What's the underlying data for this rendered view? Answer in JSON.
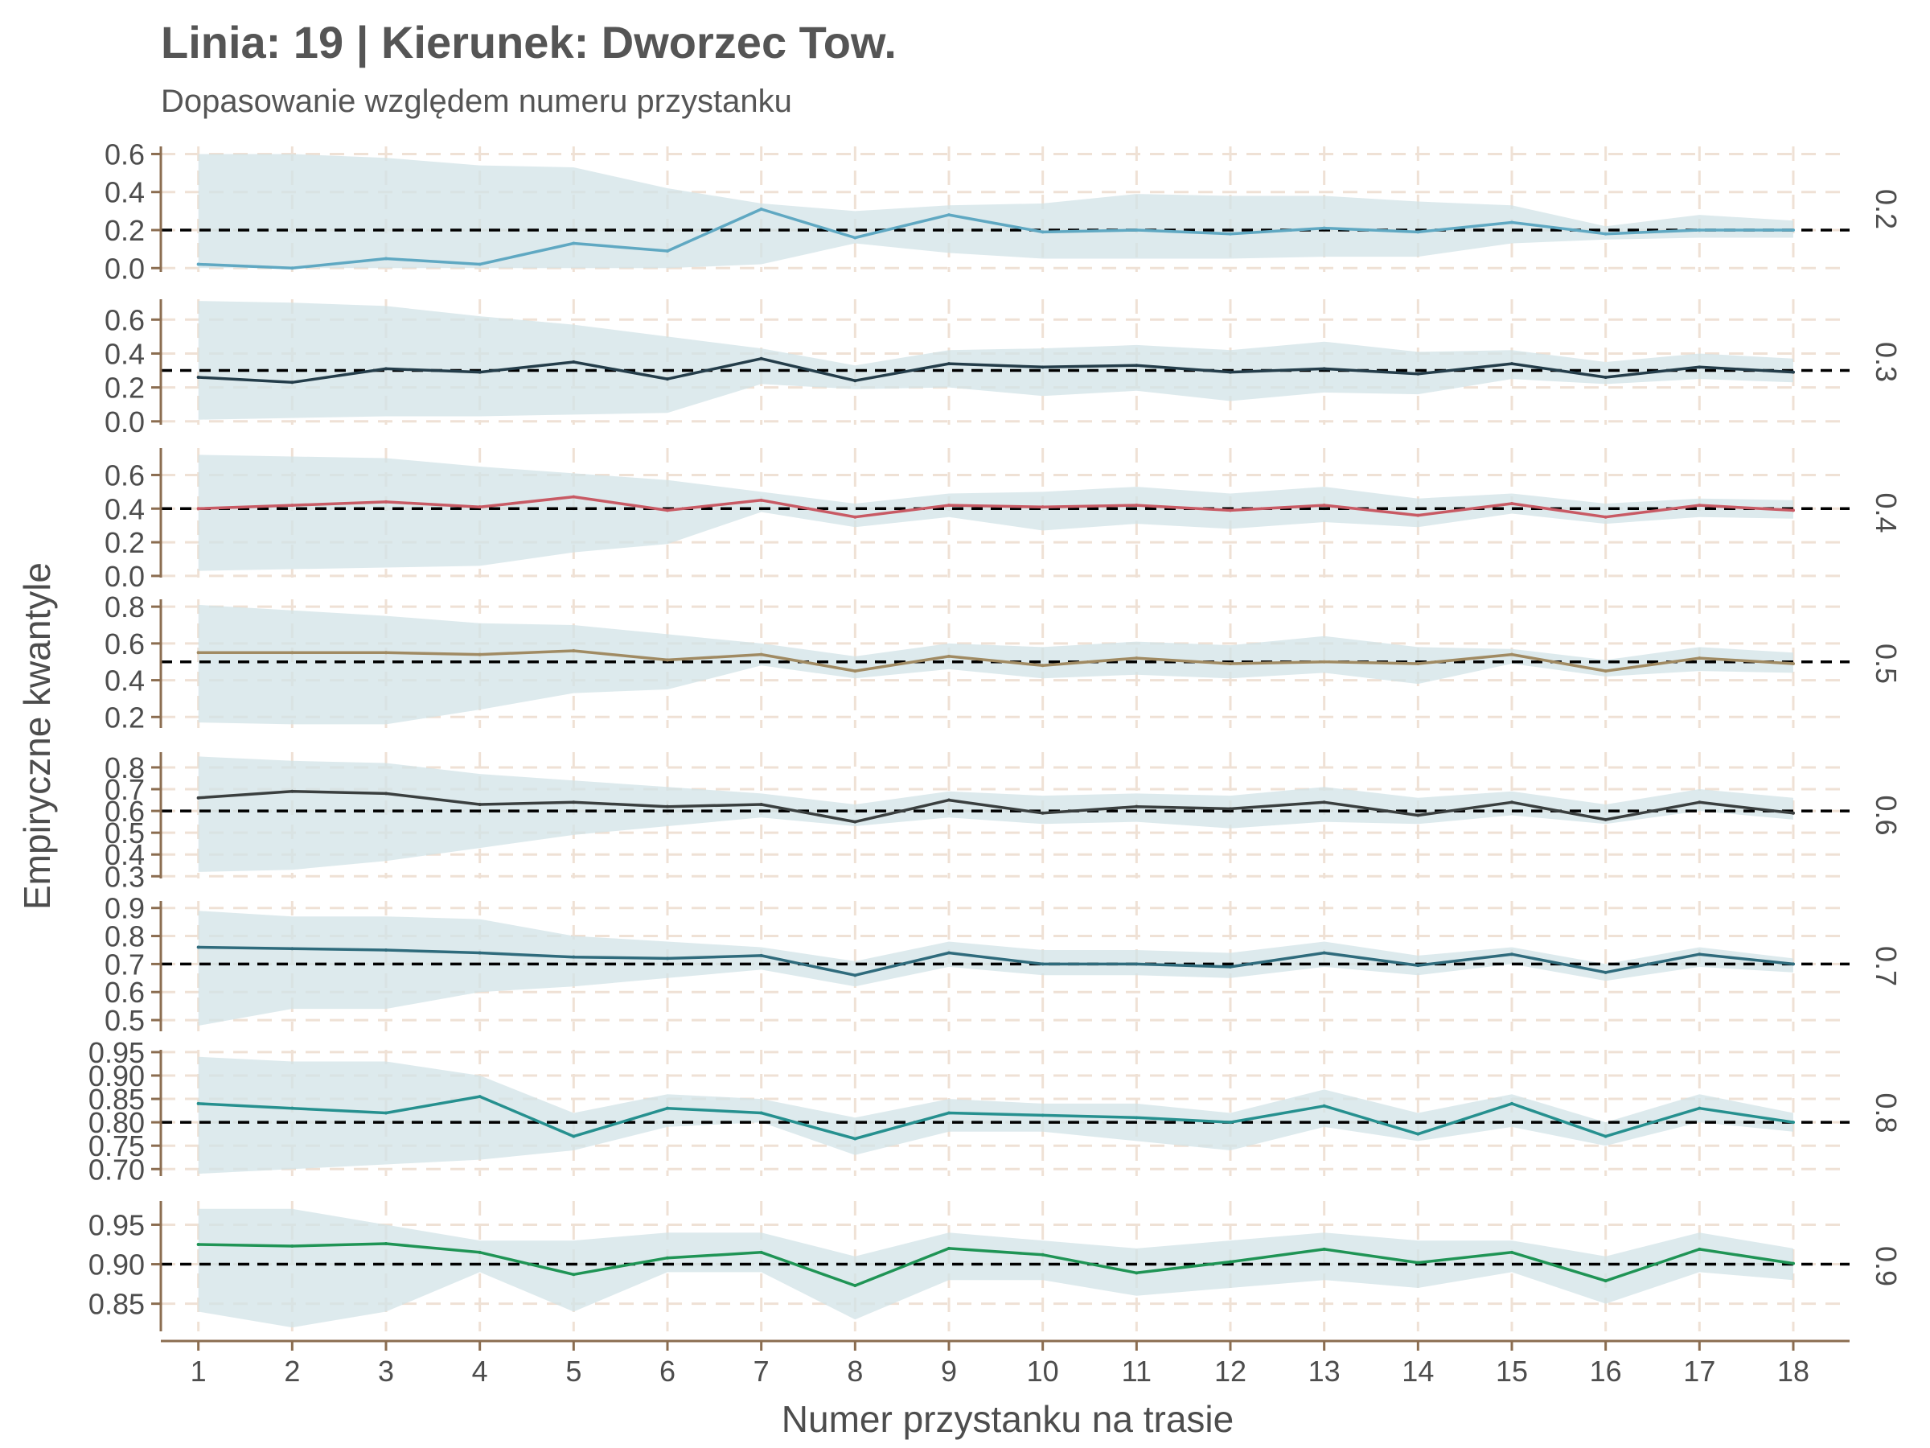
{
  "title": "Linia: 19 | Kierunek: Dworzec Tow.",
  "subtitle": "Dopasowanie względem numeru przystanku",
  "chart_data": {
    "type": "line",
    "xlabel": "Numer przystanku na trasie",
    "ylabel": "Empiryczne kwantyle",
    "x": [
      1,
      2,
      3,
      4,
      5,
      6,
      7,
      8,
      9,
      10,
      11,
      12,
      13,
      14,
      15,
      16,
      17,
      18
    ],
    "band_color": "#d2e3e7",
    "grid_color": "#efe1d5",
    "axis_color": "#8b6d50",
    "reference_line_color": "#000000",
    "panels": [
      {
        "strip": "0.2",
        "reference": 0.2,
        "color": "#5fa8c2",
        "ylim": [
          -0.02,
          0.64
        ],
        "yticks": [
          "0.0",
          "0.2",
          "0.4",
          "0.6"
        ],
        "values": [
          0.02,
          0.0,
          0.05,
          0.02,
          0.13,
          0.09,
          0.31,
          0.16,
          0.28,
          0.19,
          0.2,
          0.18,
          0.21,
          0.19,
          0.24,
          0.18,
          0.2,
          0.2
        ],
        "lower": [
          0.0,
          0.0,
          0.0,
          0.0,
          0.0,
          0.0,
          0.02,
          0.13,
          0.08,
          0.05,
          0.05,
          0.05,
          0.06,
          0.06,
          0.13,
          0.15,
          0.16,
          0.16
        ],
        "upper": [
          0.6,
          0.6,
          0.58,
          0.54,
          0.53,
          0.42,
          0.34,
          0.3,
          0.33,
          0.34,
          0.39,
          0.38,
          0.38,
          0.35,
          0.33,
          0.22,
          0.28,
          0.25
        ]
      },
      {
        "strip": "0.3",
        "reference": 0.3,
        "color": "#243d4a",
        "ylim": [
          -0.02,
          0.72
        ],
        "yticks": [
          "0.0",
          "0.2",
          "0.4",
          "0.6"
        ],
        "values": [
          0.26,
          0.23,
          0.31,
          0.29,
          0.35,
          0.25,
          0.37,
          0.24,
          0.34,
          0.32,
          0.33,
          0.29,
          0.31,
          0.28,
          0.34,
          0.26,
          0.32,
          0.29
        ],
        "lower": [
          0.01,
          0.02,
          0.03,
          0.03,
          0.04,
          0.05,
          0.22,
          0.19,
          0.2,
          0.15,
          0.18,
          0.12,
          0.17,
          0.16,
          0.25,
          0.22,
          0.25,
          0.23
        ],
        "upper": [
          0.71,
          0.7,
          0.68,
          0.62,
          0.57,
          0.5,
          0.43,
          0.33,
          0.42,
          0.43,
          0.45,
          0.42,
          0.47,
          0.41,
          0.42,
          0.35,
          0.4,
          0.37
        ]
      },
      {
        "strip": "0.4",
        "reference": 0.4,
        "color": "#c85a64",
        "ylim": [
          -0.01,
          0.76
        ],
        "yticks": [
          "0.0",
          "0.2",
          "0.4",
          "0.6"
        ],
        "values": [
          0.4,
          0.42,
          0.44,
          0.41,
          0.47,
          0.39,
          0.45,
          0.35,
          0.42,
          0.41,
          0.42,
          0.39,
          0.42,
          0.36,
          0.43,
          0.35,
          0.42,
          0.39
        ],
        "lower": [
          0.03,
          0.04,
          0.05,
          0.06,
          0.14,
          0.19,
          0.38,
          0.29,
          0.35,
          0.27,
          0.31,
          0.28,
          0.32,
          0.29,
          0.37,
          0.31,
          0.35,
          0.34
        ],
        "upper": [
          0.72,
          0.71,
          0.7,
          0.65,
          0.61,
          0.57,
          0.5,
          0.43,
          0.49,
          0.5,
          0.53,
          0.49,
          0.53,
          0.46,
          0.49,
          0.43,
          0.46,
          0.45
        ]
      },
      {
        "strip": "0.5",
        "reference": 0.5,
        "color": "#a08a62",
        "ylim": [
          0.14,
          0.84
        ],
        "yticks": [
          "0.2",
          "0.4",
          "0.6",
          "0.8"
        ],
        "values": [
          0.55,
          0.55,
          0.55,
          0.54,
          0.56,
          0.51,
          0.54,
          0.45,
          0.53,
          0.48,
          0.52,
          0.49,
          0.5,
          0.49,
          0.54,
          0.45,
          0.52,
          0.49
        ],
        "lower": [
          0.17,
          0.16,
          0.16,
          0.24,
          0.33,
          0.35,
          0.48,
          0.41,
          0.46,
          0.41,
          0.43,
          0.41,
          0.44,
          0.38,
          0.49,
          0.42,
          0.45,
          0.44
        ],
        "upper": [
          0.81,
          0.78,
          0.75,
          0.71,
          0.7,
          0.65,
          0.6,
          0.53,
          0.6,
          0.58,
          0.61,
          0.59,
          0.64,
          0.58,
          0.57,
          0.51,
          0.58,
          0.55
        ]
      },
      {
        "strip": "0.6",
        "reference": 0.6,
        "color": "#3a3f3f",
        "ylim": [
          0.29,
          0.87
        ],
        "yticks": [
          "0.3",
          "0.4",
          "0.5",
          "0.6",
          "0.7",
          "0.8"
        ],
        "values": [
          0.66,
          0.69,
          0.68,
          0.63,
          0.64,
          0.62,
          0.63,
          0.55,
          0.65,
          0.59,
          0.62,
          0.61,
          0.64,
          0.58,
          0.64,
          0.56,
          0.64,
          0.59
        ],
        "lower": [
          0.32,
          0.33,
          0.37,
          0.43,
          0.49,
          0.53,
          0.57,
          0.53,
          0.57,
          0.54,
          0.55,
          0.52,
          0.55,
          0.54,
          0.58,
          0.54,
          0.6,
          0.56
        ],
        "upper": [
          0.85,
          0.83,
          0.82,
          0.77,
          0.74,
          0.71,
          0.68,
          0.63,
          0.69,
          0.67,
          0.68,
          0.67,
          0.71,
          0.66,
          0.69,
          0.63,
          0.7,
          0.66
        ]
      },
      {
        "strip": "0.7",
        "reference": 0.7,
        "color": "#2f6b7c",
        "ylim": [
          0.46,
          0.925
        ],
        "yticks": [
          "0.5",
          "0.6",
          "0.7",
          "0.8",
          "0.9"
        ],
        "values": [
          0.76,
          0.755,
          0.75,
          0.74,
          0.725,
          0.72,
          0.73,
          0.66,
          0.74,
          0.7,
          0.7,
          0.69,
          0.74,
          0.695,
          0.735,
          0.67,
          0.735,
          0.7
        ],
        "lower": [
          0.48,
          0.54,
          0.54,
          0.6,
          0.62,
          0.65,
          0.68,
          0.62,
          0.69,
          0.66,
          0.66,
          0.65,
          0.69,
          0.66,
          0.7,
          0.64,
          0.69,
          0.67
        ],
        "upper": [
          0.89,
          0.87,
          0.87,
          0.86,
          0.8,
          0.78,
          0.76,
          0.71,
          0.78,
          0.75,
          0.75,
          0.74,
          0.78,
          0.73,
          0.76,
          0.7,
          0.76,
          0.72
        ]
      },
      {
        "strip": "0.8",
        "reference": 0.8,
        "color": "#26908f",
        "ylim": [
          0.685,
          0.955
        ],
        "yticks": [
          "0.70",
          "0.75",
          "0.80",
          "0.85",
          "0.90",
          "0.95"
        ],
        "values": [
          0.84,
          0.83,
          0.82,
          0.855,
          0.77,
          0.83,
          0.82,
          0.765,
          0.82,
          0.815,
          0.81,
          0.8,
          0.835,
          0.775,
          0.84,
          0.77,
          0.83,
          0.8
        ],
        "lower": [
          0.69,
          0.7,
          0.71,
          0.72,
          0.74,
          0.79,
          0.8,
          0.73,
          0.78,
          0.78,
          0.76,
          0.74,
          0.79,
          0.76,
          0.79,
          0.75,
          0.8,
          0.78
        ],
        "upper": [
          0.94,
          0.93,
          0.93,
          0.9,
          0.82,
          0.86,
          0.85,
          0.81,
          0.85,
          0.84,
          0.84,
          0.82,
          0.87,
          0.82,
          0.86,
          0.8,
          0.86,
          0.82
        ]
      },
      {
        "strip": "0.9",
        "reference": 0.9,
        "color": "#1f9455",
        "ylim": [
          0.815,
          0.98
        ],
        "yticks": [
          "0.85",
          "0.90",
          "0.95"
        ],
        "values": [
          0.925,
          0.923,
          0.926,
          0.915,
          0.887,
          0.908,
          0.915,
          0.873,
          0.92,
          0.912,
          0.889,
          0.903,
          0.919,
          0.902,
          0.915,
          0.879,
          0.919,
          0.901
        ],
        "lower": [
          0.84,
          0.82,
          0.84,
          0.89,
          0.84,
          0.89,
          0.89,
          0.83,
          0.88,
          0.88,
          0.86,
          0.87,
          0.88,
          0.87,
          0.89,
          0.85,
          0.89,
          0.88
        ],
        "upper": [
          0.97,
          0.97,
          0.95,
          0.93,
          0.93,
          0.94,
          0.94,
          0.91,
          0.94,
          0.93,
          0.92,
          0.93,
          0.94,
          0.93,
          0.93,
          0.91,
          0.94,
          0.92
        ]
      }
    ]
  }
}
